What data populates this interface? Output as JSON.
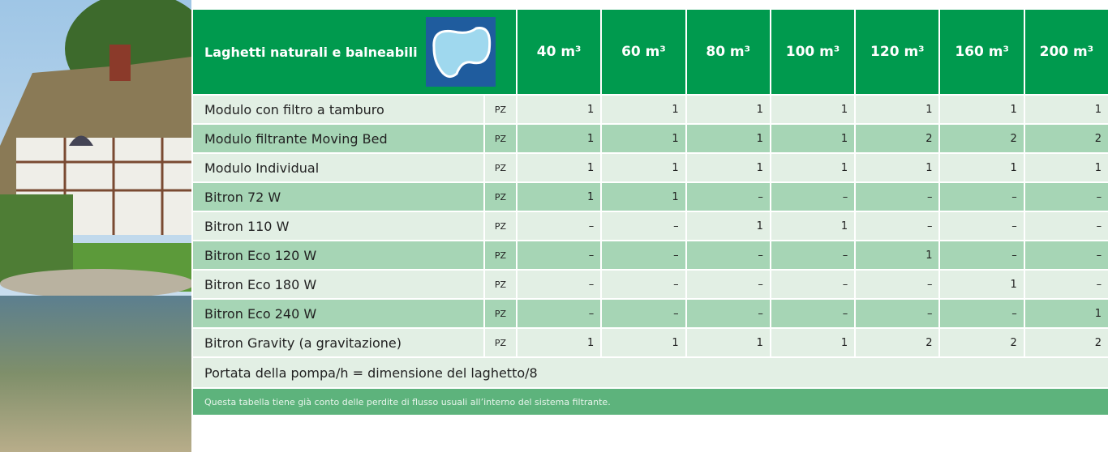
{
  "header": {
    "title": "Laghetti naturali e balneabili",
    "columns": [
      "40 m³",
      "60 m³",
      "80 m³",
      "100 m³",
      "120 m³",
      "160 m³",
      "200 m³"
    ]
  },
  "table": {
    "rows": [
      {
        "name": "Modulo con filtro a tamburo",
        "unit": "PZ",
        "values": [
          1,
          1,
          1,
          1,
          1,
          1,
          1
        ]
      },
      {
        "name": "Modulo filtrante Moving Bed",
        "unit": "PZ",
        "values": [
          1,
          1,
          1,
          1,
          2,
          2,
          2
        ]
      },
      {
        "name": "Modulo Individual",
        "unit": "PZ",
        "values": [
          1,
          1,
          1,
          1,
          1,
          1,
          1
        ]
      },
      {
        "name": "Bitron 72 W",
        "unit": "PZ",
        "values": [
          1,
          1,
          "–",
          "–",
          "–",
          "–",
          "–"
        ]
      },
      {
        "name": "Bitron 110 W",
        "unit": "PZ",
        "values": [
          "–",
          "–",
          1,
          1,
          "–",
          "–",
          "–"
        ]
      },
      {
        "name": "Bitron Eco 120 W",
        "unit": "PZ",
        "values": [
          "–",
          "–",
          "–",
          "–",
          1,
          "–",
          "–"
        ]
      },
      {
        "name": "Bitron Eco 180 W",
        "unit": "PZ",
        "values": [
          "–",
          "–",
          "–",
          "–",
          "–",
          1,
          "–"
        ]
      },
      {
        "name": "Bitron Eco 240 W",
        "unit": "PZ",
        "values": [
          "–",
          "–",
          "–",
          "–",
          "–",
          "–",
          1
        ]
      },
      {
        "name": "Bitron Gravity (a gravitazione)",
        "unit": "PZ",
        "values": [
          1,
          1,
          1,
          1,
          2,
          2,
          2
        ]
      }
    ]
  },
  "formula": "Portata della pompa/h = dimensione del laghetto/8",
  "note": "Questa tabella tiene già conto delle perdite di flusso usuali all’interno del sistema filtrante."
}
